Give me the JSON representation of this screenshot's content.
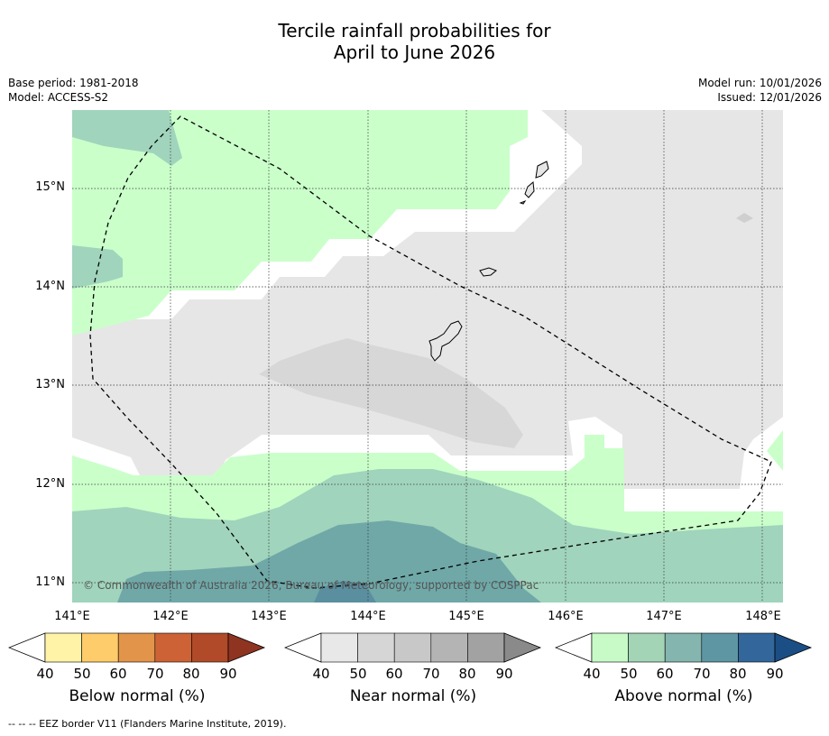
{
  "header": {
    "title_line1": "Tercile rainfall probabilities for",
    "title_line2": "April to June 2026",
    "base_period": "Base period: 1981-2018",
    "model": "Model: ACCESS-S2",
    "model_run": "Model run: 10/01/2026",
    "issued": "Issued: 12/01/2026"
  },
  "map": {
    "lat_labels": [
      "15°N",
      "14°N",
      "13°N",
      "12°N",
      "11°N"
    ],
    "lon_labels": [
      "141°E",
      "142°E",
      "143°E",
      "144°E",
      "145°E",
      "146°E",
      "147°E",
      "148°E"
    ],
    "copyright": "© Commonwealth of Australia 2026, Bureau of Meteorology, supported by COSPPac",
    "colors": {
      "near_normal_40": "#e6e6e6",
      "near_normal_50": "#d7d7d7",
      "above_normal_40": "#caffca",
      "above_normal_50": "#a0d4bc",
      "above_normal_60": "#70a8a8",
      "above_normal_70": "#5a8fa0"
    }
  },
  "colorbars": [
    {
      "title": "Below normal (%)",
      "ticks": [
        "40",
        "50",
        "60",
        "70",
        "80",
        "90"
      ],
      "colors": [
        "#fff3a8",
        "#fecc6a",
        "#e2954a",
        "#cc6235",
        "#b04a28",
        "#8f3421"
      ]
    },
    {
      "title": "Near normal (%)",
      "ticks": [
        "40",
        "50",
        "60",
        "70",
        "80",
        "90"
      ],
      "colors": [
        "#e8e8e8",
        "#d6d6d6",
        "#c8c8c8",
        "#b4b4b4",
        "#a2a2a2",
        "#8a8a8a"
      ]
    },
    {
      "title": "Above normal (%)",
      "ticks": [
        "40",
        "50",
        "60",
        "70",
        "80",
        "90"
      ],
      "colors": [
        "#c7fac7",
        "#a3d4b6",
        "#84b5ae",
        "#5e96a3",
        "#33669a",
        "#1b4e85"
      ]
    }
  ],
  "footer": "--  --  -- EEZ border V11 (Flanders Marine Institute, 2019)."
}
